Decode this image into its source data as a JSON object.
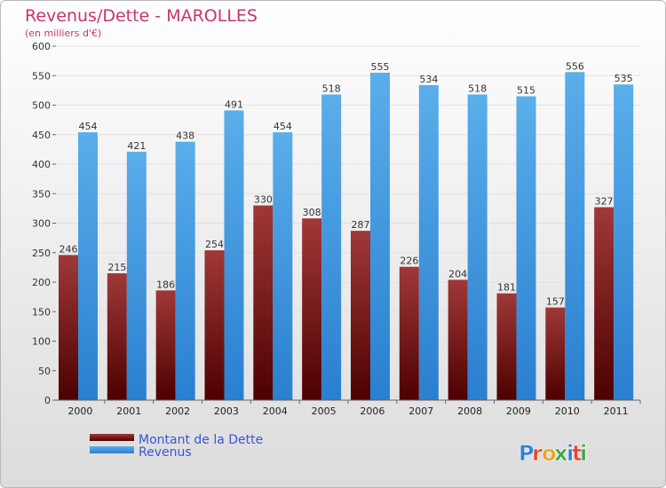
{
  "colors": {
    "debt_dark": "#4d0000",
    "debt_light": "#a03838",
    "rev_dark": "#2a7fd0",
    "rev_light": "#5aaeea",
    "title": "#c8356d"
  },
  "logo": {
    "text": "Proxiti"
  },
  "chart_data": {
    "type": "bar",
    "title": "Revenus/Dette - MAROLLES",
    "subtitle": "(en milliers d'€)",
    "categories": [
      "2000",
      "2001",
      "2002",
      "2003",
      "2004",
      "2005",
      "2006",
      "2007",
      "2008",
      "2009",
      "2010",
      "2011"
    ],
    "series": [
      {
        "name": "Montant de la Dette",
        "values": [
          246,
          215,
          186,
          254,
          330,
          308,
          287,
          226,
          204,
          181,
          157,
          327
        ]
      },
      {
        "name": "Revenus",
        "values": [
          454,
          421,
          438,
          491,
          454,
          518,
          555,
          534,
          518,
          515,
          556,
          535
        ]
      }
    ],
    "ylim": [
      0,
      600
    ],
    "yticks": [
      0,
      50,
      100,
      150,
      200,
      250,
      300,
      350,
      400,
      450,
      500,
      550,
      600
    ],
    "grid": true,
    "legend": "bottom-left"
  }
}
